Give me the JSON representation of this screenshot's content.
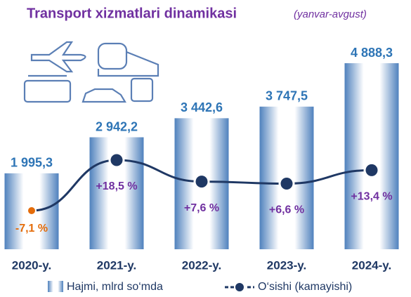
{
  "chart_data": {
    "type": "bar",
    "title": "Transport xizmatlari dinamikasi",
    "subtitle": "(yanvar-avgust)",
    "categories": [
      "2020-y.",
      "2021-y.",
      "2022-y.",
      "2023-y.",
      "2024-y."
    ],
    "series": [
      {
        "name": "Hajmi, mlrd so‘mda",
        "type": "bar",
        "color": "#4f81bd",
        "values": [
          1995.3,
          2942.2,
          3442.6,
          3747.5,
          4888.3
        ],
        "value_labels": [
          "1 995,3",
          "2 942,2",
          "3 442,6",
          "3 747,5",
          "4 888,3"
        ],
        "label_color": "#2e75b6"
      },
      {
        "name": "O‘sishi (kamayishi)",
        "type": "line",
        "color": "#1f3864",
        "negative_color": "#e46c0a",
        "values": [
          -7.1,
          18.5,
          7.6,
          6.6,
          13.4
        ],
        "value_labels": [
          "-7,1 %",
          "+18,5 %",
          "+7,6 %",
          "+6,6 %",
          "+13,4 %"
        ],
        "label_color": "#7030a0"
      }
    ]
  }
}
